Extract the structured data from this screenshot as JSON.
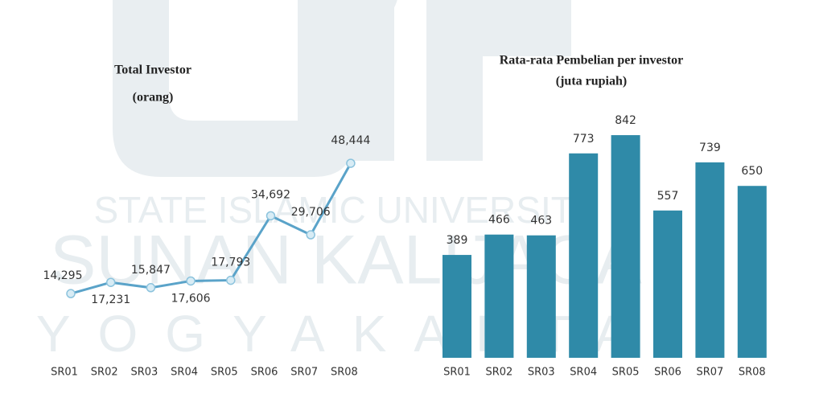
{
  "chart_data": [
    {
      "type": "line",
      "title": "Total Investor",
      "subtitle": "(orang)",
      "categories": [
        "SR01",
        "SR02",
        "SR03",
        "SR04",
        "SR05",
        "SR06",
        "SR07",
        "SR08"
      ],
      "values": [
        14295,
        17231,
        15847,
        17606,
        17793,
        34692,
        29706,
        48444
      ],
      "value_labels": [
        "14,295",
        "17,231",
        "15,847",
        "17,606",
        "17,793",
        "34,692",
        "29,706",
        "48,444"
      ],
      "color": "#5aa3c9",
      "ylim": [
        0,
        55000
      ]
    },
    {
      "type": "bar",
      "title": "Rata-rata Pembelian per investor",
      "subtitle": "(juta rupiah)",
      "categories": [
        "SR01",
        "SR02",
        "SR03",
        "SR04",
        "SR05",
        "SR06",
        "SR07",
        "SR08"
      ],
      "values": [
        389,
        466,
        463,
        773,
        842,
        557,
        739,
        650
      ],
      "color": "#2f8aa8",
      "ylim": [
        0,
        900
      ]
    }
  ],
  "watermark": {
    "lines": [
      "STATE ISLAMIC UNIVERSITY",
      "SUNAN KALIJAGA",
      "YOGYAKARTA"
    ]
  }
}
